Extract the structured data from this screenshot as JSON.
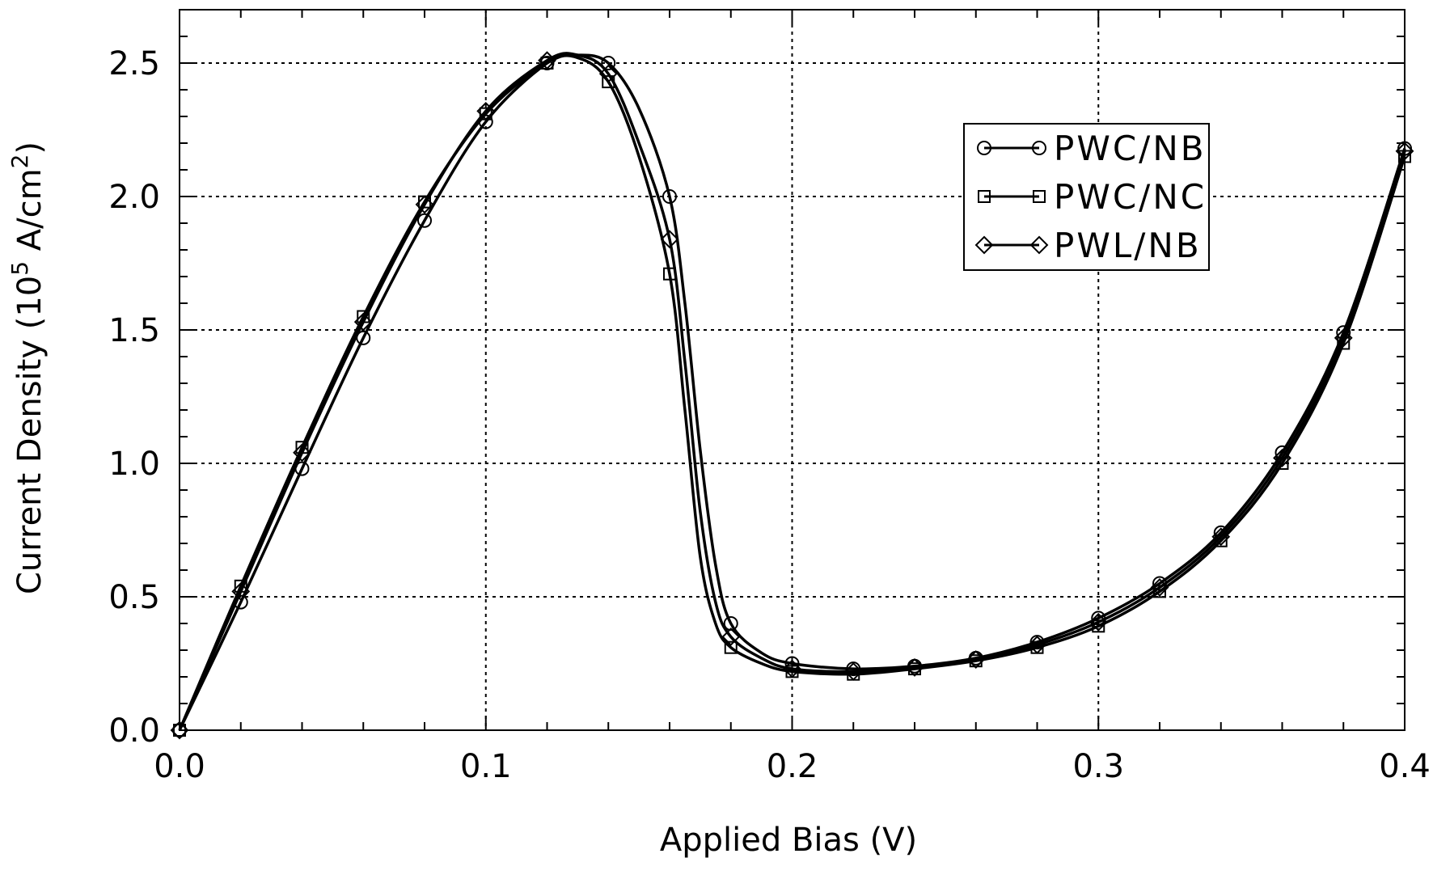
{
  "chart_data": {
    "type": "line",
    "title": "",
    "xlabel": "Applied Bias (V)",
    "ylabel": {
      "prefix": "Current Density (10",
      "exp1": "5",
      "mid": " A/cm",
      "exp2": "2",
      "suffix": ")"
    },
    "xlim": [
      0,
      0.4
    ],
    "ylim": [
      0,
      2.7
    ],
    "xticks": [
      0.0,
      0.1,
      0.2,
      0.3,
      0.4
    ],
    "xtick_labels": [
      "0.0",
      "0.1",
      "0.2",
      "0.3",
      "0.4"
    ],
    "yticks": [
      0.0,
      0.5,
      1.0,
      1.5,
      2.0,
      2.5
    ],
    "ytick_labels": [
      "0.0",
      "0.5",
      "1.0",
      "1.5",
      "2.0",
      "2.5"
    ],
    "grid": true,
    "legend_position": "top-right",
    "series": [
      {
        "name": "PWC/NB",
        "marker": "circle",
        "x": [
          0.0,
          0.02,
          0.04,
          0.06,
          0.08,
          0.1,
          0.12,
          0.13,
          0.14,
          0.15,
          0.16,
          0.165,
          0.17,
          0.175,
          0.18,
          0.19,
          0.2,
          0.22,
          0.24,
          0.26,
          0.28,
          0.3,
          0.32,
          0.34,
          0.36,
          0.38,
          0.4
        ],
        "y": [
          0.0,
          0.48,
          0.98,
          1.47,
          1.91,
          2.28,
          2.5,
          2.53,
          2.5,
          2.33,
          2.0,
          1.6,
          1.05,
          0.62,
          0.4,
          0.29,
          0.25,
          0.23,
          0.24,
          0.27,
          0.33,
          0.42,
          0.55,
          0.74,
          1.04,
          1.49,
          2.18
        ]
      },
      {
        "name": "PWC/NC",
        "marker": "square",
        "x": [
          0.0,
          0.02,
          0.04,
          0.06,
          0.08,
          0.1,
          0.12,
          0.13,
          0.14,
          0.15,
          0.16,
          0.165,
          0.17,
          0.175,
          0.18,
          0.19,
          0.2,
          0.22,
          0.24,
          0.26,
          0.28,
          0.3,
          0.32,
          0.34,
          0.36,
          0.38,
          0.4
        ],
        "y": [
          0.0,
          0.54,
          1.06,
          1.55,
          1.98,
          2.31,
          2.5,
          2.52,
          2.43,
          2.15,
          1.71,
          1.2,
          0.65,
          0.4,
          0.31,
          0.25,
          0.22,
          0.21,
          0.23,
          0.26,
          0.31,
          0.39,
          0.52,
          0.71,
          1.0,
          1.45,
          2.15
        ]
      },
      {
        "name": "PWL/NB",
        "marker": "diamond",
        "x": [
          0.0,
          0.02,
          0.04,
          0.06,
          0.08,
          0.1,
          0.12,
          0.13,
          0.14,
          0.15,
          0.16,
          0.165,
          0.17,
          0.175,
          0.18,
          0.19,
          0.2,
          0.22,
          0.24,
          0.26,
          0.28,
          0.3,
          0.32,
          0.34,
          0.36,
          0.38,
          0.4
        ],
        "y": [
          0.0,
          0.52,
          1.04,
          1.53,
          1.97,
          2.32,
          2.51,
          2.53,
          2.46,
          2.2,
          1.84,
          1.38,
          0.82,
          0.48,
          0.35,
          0.27,
          0.23,
          0.22,
          0.235,
          0.265,
          0.32,
          0.405,
          0.535,
          0.725,
          1.02,
          1.47,
          2.17
        ]
      }
    ]
  }
}
